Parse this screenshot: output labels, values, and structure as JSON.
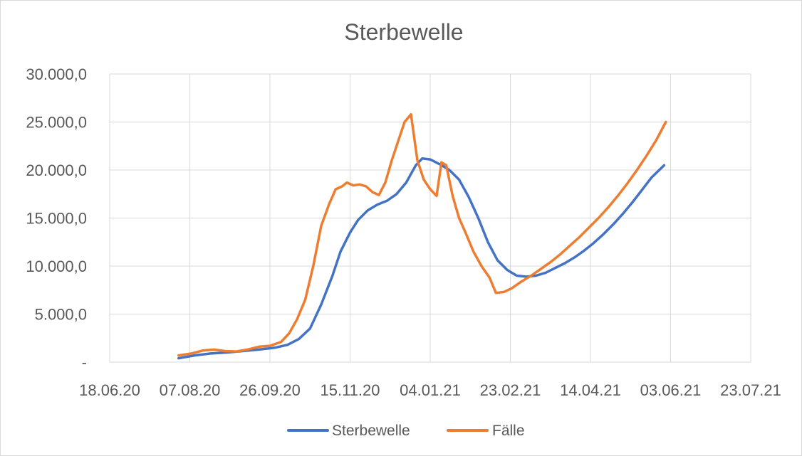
{
  "colors": {
    "sterbewelle": "#4472C4",
    "faelle": "#ED7D31",
    "grid": "#d9d9d9",
    "text": "#595959"
  },
  "chart_data": {
    "type": "line",
    "title": "Sterbewelle",
    "xlabel": "",
    "ylabel": "",
    "x_ticks": [
      "18.06.20",
      "07.08.20",
      "26.09.20",
      "15.11.20",
      "04.01.21",
      "23.02.21",
      "14.04.21",
      "03.06.21",
      "23.07.21"
    ],
    "y_ticks": [
      "-",
      "5.000,0",
      "10.000,0",
      "15.000,0",
      "20.000,0",
      "25.000,0",
      "30.000,0"
    ],
    "xlim": [
      "2020-06-18",
      "2021-07-23"
    ],
    "ylim": [
      0,
      30000
    ],
    "grid": true,
    "legend": "bottom",
    "series": [
      {
        "name": "Sterbewelle",
        "color": "#4472C4",
        "points": [
          [
            "2020-07-31",
            400
          ],
          [
            "2020-08-10",
            700
          ],
          [
            "2020-08-20",
            900
          ],
          [
            "2020-08-30",
            1000
          ],
          [
            "2020-09-09",
            1150
          ],
          [
            "2020-09-19",
            1300
          ],
          [
            "2020-09-29",
            1500
          ],
          [
            "2020-10-07",
            1800
          ],
          [
            "2020-10-14",
            2400
          ],
          [
            "2020-10-21",
            3500
          ],
          [
            "2020-10-28",
            6000
          ],
          [
            "2020-11-04",
            9000
          ],
          [
            "2020-11-09",
            11500
          ],
          [
            "2020-11-15",
            13500
          ],
          [
            "2020-11-20",
            14800
          ],
          [
            "2020-11-26",
            15800
          ],
          [
            "2020-12-02",
            16400
          ],
          [
            "2020-12-08",
            16800
          ],
          [
            "2020-12-14",
            17500
          ],
          [
            "2020-12-20",
            18700
          ],
          [
            "2020-12-26",
            20500
          ],
          [
            "2020-12-30",
            21200
          ],
          [
            "2021-01-04",
            21100
          ],
          [
            "2021-01-10",
            20600
          ],
          [
            "2021-01-16",
            20000
          ],
          [
            "2021-01-22",
            19000
          ],
          [
            "2021-01-28",
            17200
          ],
          [
            "2021-02-03",
            15000
          ],
          [
            "2021-02-09",
            12500
          ],
          [
            "2021-02-15",
            10600
          ],
          [
            "2021-02-21",
            9600
          ],
          [
            "2021-02-27",
            9000
          ],
          [
            "2021-03-05",
            8900
          ],
          [
            "2021-03-11",
            9000
          ],
          [
            "2021-03-17",
            9300
          ],
          [
            "2021-03-23",
            9800
          ],
          [
            "2021-03-29",
            10300
          ],
          [
            "2021-04-04",
            10900
          ],
          [
            "2021-04-10",
            11600
          ],
          [
            "2021-04-16",
            12400
          ],
          [
            "2021-04-22",
            13300
          ],
          [
            "2021-04-28",
            14300
          ],
          [
            "2021-05-04",
            15400
          ],
          [
            "2021-05-10",
            16600
          ],
          [
            "2021-05-16",
            17900
          ],
          [
            "2021-05-22",
            19200
          ],
          [
            "2021-05-30",
            20500
          ]
        ]
      },
      {
        "name": "Fälle",
        "color": "#ED7D31",
        "points": [
          [
            "2020-07-31",
            700
          ],
          [
            "2020-08-08",
            900
          ],
          [
            "2020-08-15",
            1200
          ],
          [
            "2020-08-22",
            1300
          ],
          [
            "2020-08-29",
            1150
          ],
          [
            "2020-09-05",
            1100
          ],
          [
            "2020-09-12",
            1300
          ],
          [
            "2020-09-19",
            1600
          ],
          [
            "2020-09-26",
            1700
          ],
          [
            "2020-10-03",
            2100
          ],
          [
            "2020-10-08",
            3000
          ],
          [
            "2020-10-13",
            4500
          ],
          [
            "2020-10-18",
            6500
          ],
          [
            "2020-10-23",
            10000
          ],
          [
            "2020-10-28",
            14200
          ],
          [
            "2020-11-02",
            16500
          ],
          [
            "2020-11-06",
            18000
          ],
          [
            "2020-11-10",
            18300
          ],
          [
            "2020-11-13",
            18700
          ],
          [
            "2020-11-17",
            18400
          ],
          [
            "2020-11-21",
            18500
          ],
          [
            "2020-11-25",
            18300
          ],
          [
            "2020-11-29",
            17700
          ],
          [
            "2020-12-03",
            17400
          ],
          [
            "2020-12-07",
            18700
          ],
          [
            "2020-12-11",
            21000
          ],
          [
            "2020-12-15",
            23000
          ],
          [
            "2020-12-19",
            25000
          ],
          [
            "2020-12-23",
            25800
          ],
          [
            "2020-12-27",
            21000
          ],
          [
            "2020-12-31",
            19000
          ],
          [
            "2021-01-04",
            18000
          ],
          [
            "2021-01-08",
            17300
          ],
          [
            "2021-01-11",
            20800
          ],
          [
            "2021-01-14",
            20500
          ],
          [
            "2021-01-18",
            17300
          ],
          [
            "2021-01-22",
            15000
          ],
          [
            "2021-01-26",
            13500
          ],
          [
            "2021-01-31",
            11500
          ],
          [
            "2021-02-05",
            10000
          ],
          [
            "2021-02-10",
            8800
          ],
          [
            "2021-02-14",
            7200
          ],
          [
            "2021-02-19",
            7300
          ],
          [
            "2021-02-24",
            7700
          ],
          [
            "2021-03-02",
            8400
          ],
          [
            "2021-03-08",
            9000
          ],
          [
            "2021-03-14",
            9700
          ],
          [
            "2021-03-20",
            10400
          ],
          [
            "2021-03-26",
            11200
          ],
          [
            "2021-04-01",
            12100
          ],
          [
            "2021-04-07",
            13000
          ],
          [
            "2021-04-13",
            14000
          ],
          [
            "2021-04-19",
            15000
          ],
          [
            "2021-04-25",
            16100
          ],
          [
            "2021-05-01",
            17300
          ],
          [
            "2021-05-07",
            18600
          ],
          [
            "2021-05-13",
            20000
          ],
          [
            "2021-05-19",
            21500
          ],
          [
            "2021-05-25",
            23100
          ],
          [
            "2021-05-31",
            25000
          ]
        ]
      }
    ]
  }
}
